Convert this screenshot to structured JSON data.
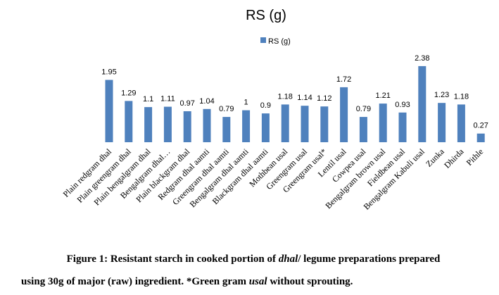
{
  "chart_data": {
    "type": "bar",
    "title": "RS (g)",
    "legend": {
      "label": "RS (g)",
      "position": "top-center"
    },
    "color": "#4f81bd",
    "xlabel": "",
    "ylabel": "",
    "ylim": [
      0,
      2.5
    ],
    "grid": false,
    "categories": [
      "Plain redgram dhal",
      "Plain greengram dhal",
      "Plain bengalgram dhal",
      "Bengalgram dhal…",
      "Plain blackgram dhal",
      "Redgram dhal aamti",
      "Greengram dhal aamti",
      "Bengalgram dhal aamti",
      "Blackgram dhal aamti",
      "Mothbean usal",
      "Greengram usal",
      "Greengram usal*",
      "Lentil usal",
      "Cowpea usal",
      "Bengalgram brown usal",
      "Fieldbean usal",
      "Bengalgram Kabuli usal",
      "Zunka",
      "Dhirda",
      "Pithle"
    ],
    "values": [
      1.95,
      1.29,
      1.1,
      1.11,
      0.97,
      1.04,
      0.79,
      1,
      0.9,
      1.18,
      1.14,
      1.12,
      1.72,
      0.79,
      1.21,
      0.93,
      2.38,
      1.23,
      1.18,
      0.27
    ],
    "value_labels": [
      "1.95",
      "1.29",
      "1.1",
      "1.11",
      "0.97",
      "1.04",
      "0.79",
      "1",
      "0.9",
      "1.18",
      "1.14",
      "1.12",
      "1.72",
      "0.79",
      "1.21",
      "0.93",
      "2.38",
      "1.23",
      "1.18",
      "0.27"
    ]
  },
  "caption": {
    "line1_prefix": "Figure 1: Resistant starch in cooked portion of ",
    "line1_em": "dhal",
    "line1_suffix": "/ legume preparations prepared",
    "line2_prefix": "using 30g of major (raw)  ingredient. *Green gram ",
    "line2_em": "usal",
    "line2_suffix": " without sprouting."
  }
}
